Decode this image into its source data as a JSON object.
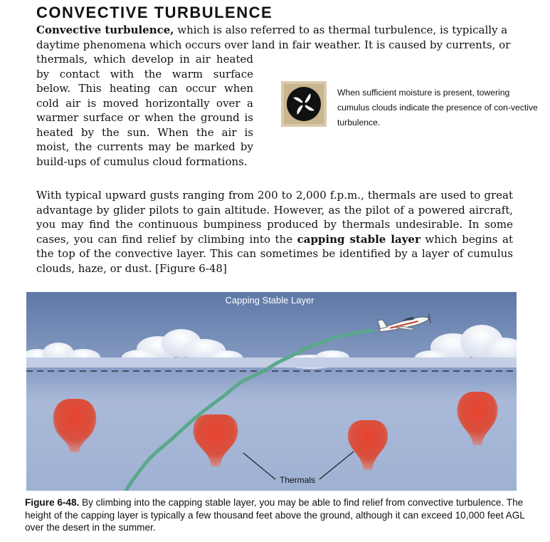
{
  "section_title": "CONVECTIVE TURBULENCE",
  "paragraph1": {
    "term": "Convective turbulence,",
    "line_start": " which is also referred to as thermal turbulence, is typically a daytime phenomena which occurs over land in fair weather. It is caused by currents, or",
    "continuation": "thermals, which develop in air heated by contact with the warm surface below. This heating can occur when cold air is moved horizontally over a warmer surface or when the ground is heated by the sun. When the air is moist, the currents may be marked by build-ups of cumulus cloud formations."
  },
  "sidebar": {
    "icon": "tri-swirl-turbulence-icon",
    "note": "When sufficient moisture is present, towering cumulus clouds indicate the presence of con-vective turbulence."
  },
  "paragraph2": {
    "text_before": "With typical upward gusts ranging from 200 to 2,000 f.p.m., thermals are used to great advantage by glider pilots to gain altitude. However, as the pilot of a powered aircraft, you may find the continuous bumpiness produced by thermals undesirable. In some cases, you can find relief by climbing into the ",
    "term": "capping stable layer",
    "text_after": " which begins at the top of the convective layer. This can sometimes be identified by a layer of cumulus clouds, haze, or dust. [Figure 6-48]"
  },
  "figure": {
    "label_top": "Capping Stable Layer",
    "label_thermals": "Thermals",
    "colors": {
      "sky_top": "#5e78a6",
      "sky_bottom": "#a9b9d6",
      "thermal": "#d84a3c",
      "climb_path": "#5aa88c"
    }
  },
  "caption": {
    "label": "Figure 6-48.",
    "text": " By climbing into the capping stable layer, you may be able to find relief from convective turbulence. The height of the capping layer is typically a few thousand feet above the ground, although it can exceed 10,000 feet AGL over the desert in the summer."
  }
}
